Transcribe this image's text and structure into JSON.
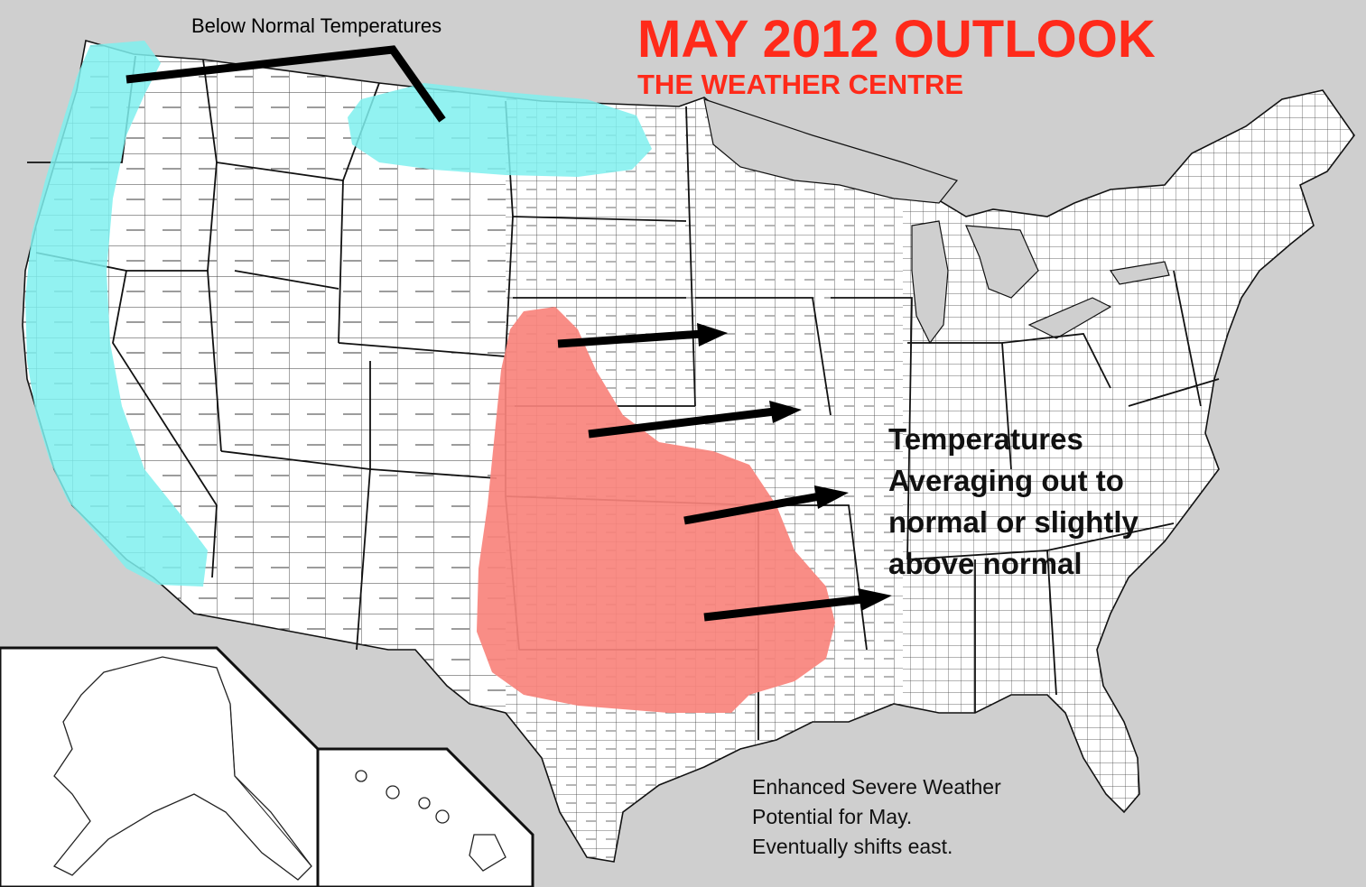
{
  "map": {
    "colors": {
      "background": "#cfcfcf",
      "land": "#ffffff",
      "borders": "#222222",
      "below_normal_region": "#7ff0ef",
      "enhanced_region": "#f8837c",
      "title": "#ff2a1a",
      "arrows": "#000000"
    },
    "regions": [
      "below-normal-west-coast",
      "below-normal-northern-plains",
      "enhanced-severe-southern-plains"
    ]
  },
  "labels": {
    "below_normal": "Below Normal Temperatures",
    "title": "MAY 2012 OUTLOOK",
    "subtitle": "THE WEATHER CENTRE",
    "temps_note": [
      "Temperatures",
      "Averaging out to",
      "normal or slightly",
      "above normal"
    ],
    "severe_note": [
      "Enhanced Severe Weather",
      "Potential for May.",
      "Eventually shifts east."
    ]
  }
}
